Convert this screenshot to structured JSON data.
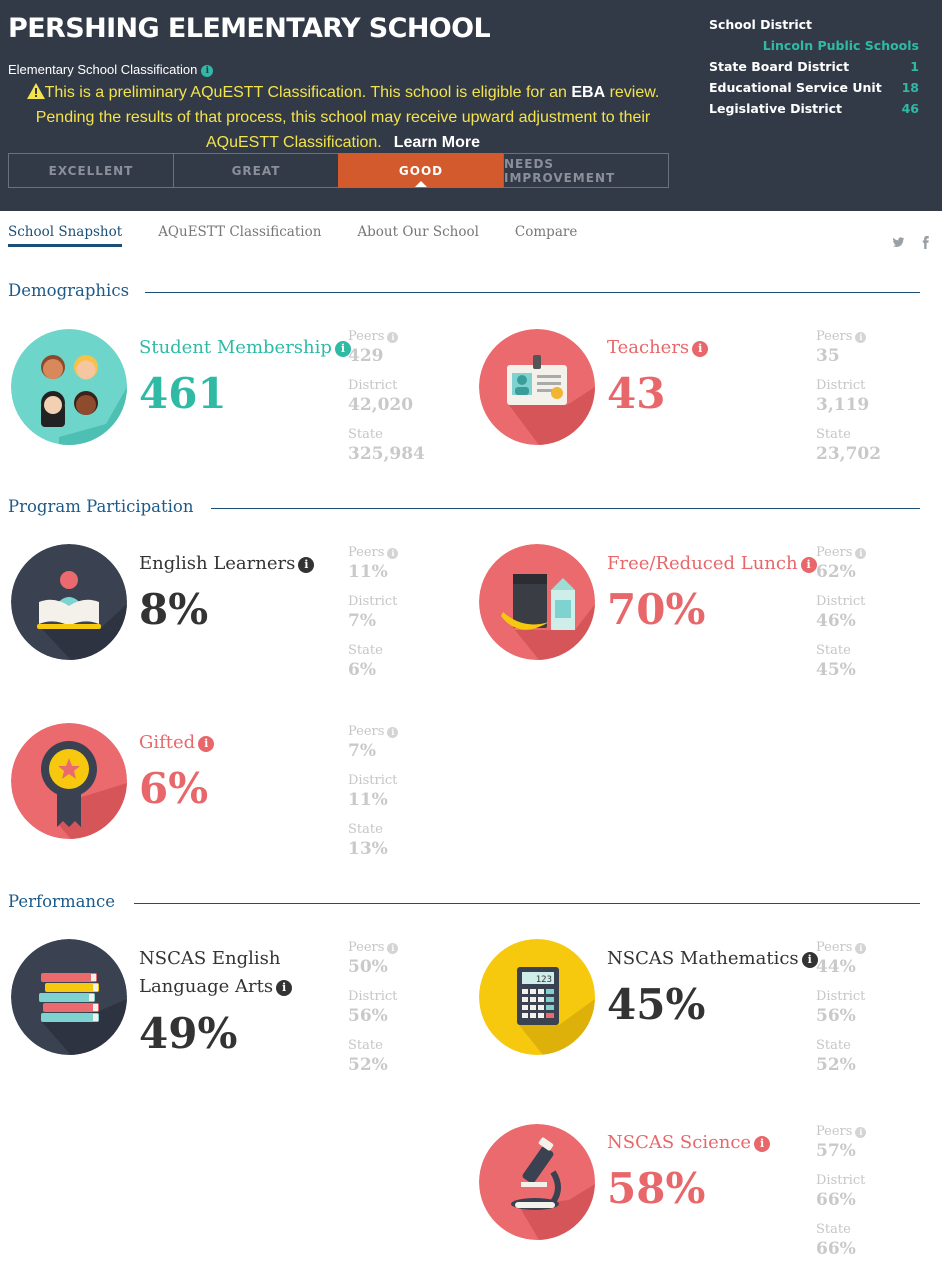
{
  "school": {
    "name": "PERSHING ELEMENTARY SCHOOL",
    "classification_label": "Elementary School Classification",
    "notice_before_eba": "This is a preliminary AQuESTT Classification. This school is eligible for an ",
    "notice_eba": "EBA",
    "notice_after_eba": " review. Pending the results of that process, this school may receive upward adjustment to their AQuESTT Classification.",
    "learn_more": "Learn More"
  },
  "ratings": [
    "EXCELLENT",
    "GREAT",
    "GOOD",
    "NEEDS IMPROVEMENT"
  ],
  "active_rating": "GOOD",
  "district_info": {
    "school_district_label": "School District",
    "school_district_value": "Lincoln Public Schools",
    "rows": [
      {
        "label": "State Board District",
        "value": "1"
      },
      {
        "label": "Educational Service Unit",
        "value": "18"
      },
      {
        "label": "Legislative District",
        "value": "46"
      }
    ]
  },
  "tabs": [
    "School Snapshot",
    "AQuESTT Classification",
    "About Our School",
    "Compare"
  ],
  "sections": {
    "demographics": "Demographics",
    "program": "Program Participation",
    "performance": "Performance"
  },
  "cmp_labels": {
    "peers": "Peers",
    "district": "District",
    "state": "State"
  },
  "metrics": {
    "student_membership": {
      "title": "Student Membership",
      "value": "461",
      "peers": "429",
      "district": "42,020",
      "state": "325,984",
      "icon": "students-icon"
    },
    "teachers": {
      "title": "Teachers",
      "value": "43",
      "peers": "35",
      "district": "3,119",
      "state": "23,702",
      "icon": "id-badge-icon"
    },
    "english_learners": {
      "title": "English Learners",
      "value": "8%",
      "peers": "11%",
      "district": "7%",
      "state": "6%",
      "icon": "open-book-icon"
    },
    "free_reduced_lunch": {
      "title": "Free/Reduced Lunch",
      "value": "70%",
      "peers": "62%",
      "district": "46%",
      "state": "45%",
      "icon": "lunch-icon"
    },
    "gifted": {
      "title": "Gifted",
      "value": "6%",
      "peers": "7%",
      "district": "11%",
      "state": "13%",
      "icon": "ribbon-icon"
    },
    "nscas_ela": {
      "title_line1": "NSCAS English",
      "title_line2": "Language Arts",
      "value": "49%",
      "peers": "50%",
      "district": "56%",
      "state": "52%",
      "icon": "books-icon"
    },
    "nscas_math": {
      "title": "NSCAS Mathematics",
      "value": "45%",
      "peers": "44%",
      "district": "56%",
      "state": "52%",
      "icon": "calculator-icon"
    },
    "nscas_science": {
      "title": "NSCAS Science",
      "value": "58%",
      "peers": "57%",
      "district": "66%",
      "state": "66%",
      "icon": "microscope-icon"
    }
  },
  "calculator_display": "123",
  "colors": {
    "header_bg": "#333a47",
    "accent_teal": "#2ebaa5",
    "coral": "#e8676a",
    "good_orange": "#d35a2d",
    "notice_yellow": "#f3e34c",
    "navy": "#1c4f77",
    "math_yellow": "#f6c90e"
  }
}
